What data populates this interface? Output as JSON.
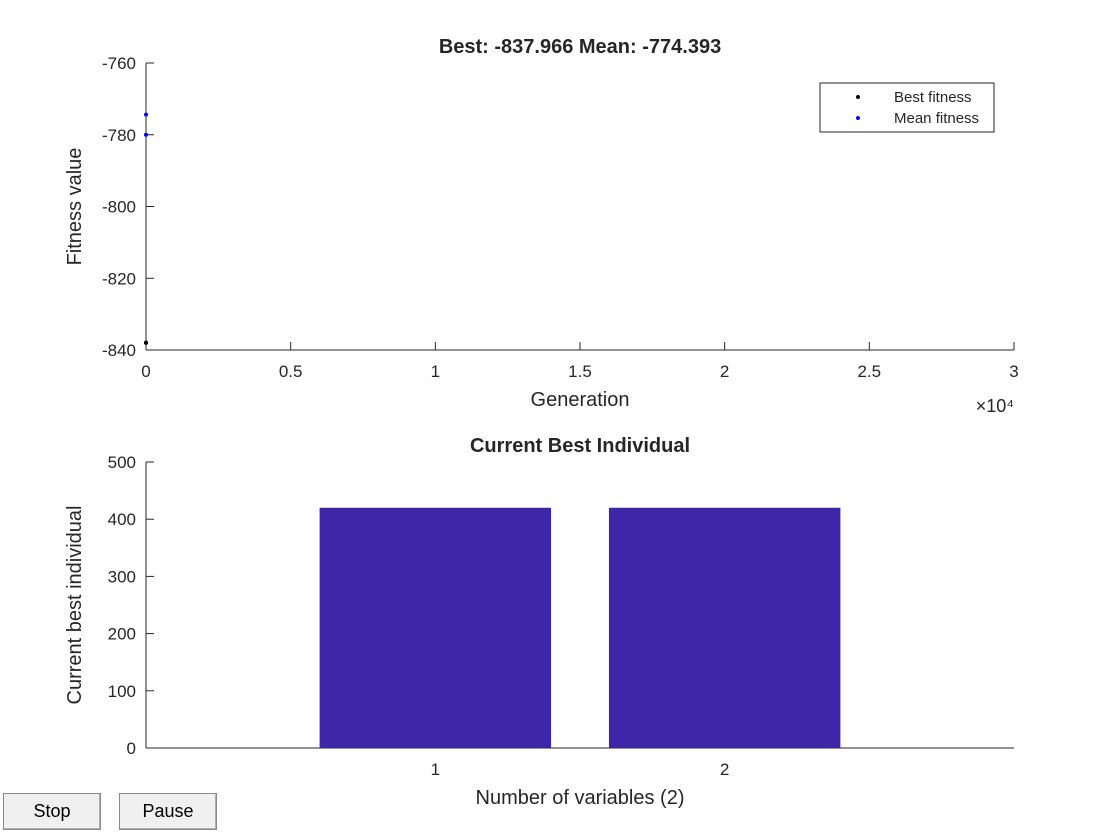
{
  "chart_data": [
    {
      "type": "scatter",
      "title": "Best: -837.966 Mean: -774.393",
      "xlabel": "Generation",
      "ylabel": "Fitness value",
      "x_multiplier": "×10⁴",
      "xlim": [
        0,
        30000
      ],
      "xticks": [
        0,
        {
          "value": 5000,
          "label": "0.5"
        },
        {
          "value": 10000,
          "label": "1"
        },
        {
          "value": 15000,
          "label": "1.5"
        },
        {
          "value": 20000,
          "label": "2"
        },
        {
          "value": 25000,
          "label": "2.5"
        },
        {
          "value": 30000,
          "label": "3"
        }
      ],
      "ylim": [
        -840,
        -760
      ],
      "yticks": [
        -840,
        -820,
        -800,
        -780,
        -760
      ],
      "legend": "top-right",
      "series": [
        {
          "name": "Best fitness",
          "color": "#000000",
          "x": [
            0,
            1
          ],
          "values": [
            -837.966,
            -837.966
          ]
        },
        {
          "name": "Mean fitness",
          "color": "#0000ff",
          "x": [
            0,
            1
          ],
          "values": [
            -780,
            -774.393
          ]
        }
      ]
    },
    {
      "type": "bar",
      "title": "Current Best Individual",
      "xlabel": "Number of variables (2)",
      "ylabel": "Current best individual",
      "x": [
        1,
        2
      ],
      "values": [
        420,
        420
      ],
      "color": "#3e26a8",
      "xlim": [
        0,
        3
      ],
      "xticks": [
        1,
        2
      ],
      "ylim": [
        0,
        500
      ],
      "yticks": [
        0,
        100,
        200,
        300,
        400,
        500
      ]
    }
  ],
  "buttons": [
    "Stop",
    "Pause"
  ]
}
